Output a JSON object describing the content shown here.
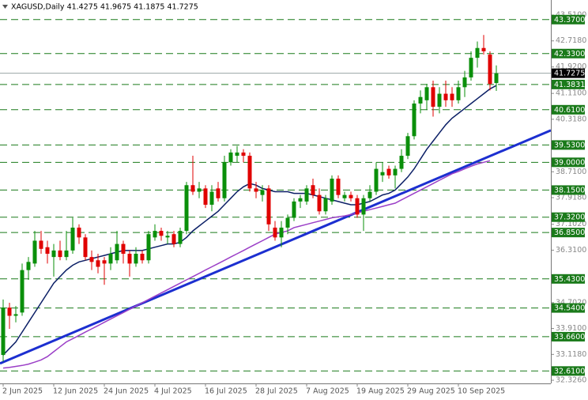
{
  "chart_data": {
    "type": "candlestick",
    "title": "XAGUSD,Daily  41.4275 41.9675 41.1875 41.7275",
    "categories": [
      "2 Jun 2025",
      null,
      null,
      null,
      null,
      null,
      null,
      null,
      "12 Jun 2025",
      null,
      null,
      null,
      null,
      null,
      null,
      null,
      "24 Jun 2025",
      null,
      null,
      null,
      null,
      null,
      null,
      null,
      "4 Jul 2025",
      null,
      null,
      null,
      null,
      null,
      null,
      null,
      "16 Jul 2025",
      null,
      null,
      null,
      null,
      null,
      null,
      null,
      "28 Jul 2025",
      null,
      null,
      null,
      null,
      null,
      null,
      null,
      "7 Aug 2025",
      null,
      null,
      null,
      null,
      null,
      null,
      null,
      "19 Aug 2025",
      null,
      null,
      null,
      null,
      null,
      null,
      null,
      "29 Aug 2025",
      null,
      null,
      null,
      null,
      null,
      null,
      null,
      "10 Sep 2025",
      null,
      null,
      null,
      null,
      null,
      null
    ],
    "open": [
      33.1,
      34.55,
      34.3,
      34.4,
      35.7,
      35.9,
      36.6,
      36.4,
      36.1,
      36.3,
      36.1,
      36.3,
      37.0,
      36.7,
      36.1,
      36.0,
      36.0,
      35.9,
      36.0,
      36.5,
      36.2,
      35.9,
      36.2,
      36.0,
      36.7,
      36.9,
      36.7,
      36.8,
      36.5,
      36.9,
      38.3,
      38.1,
      38.2,
      37.7,
      38.2,
      37.9,
      39.0,
      39.2,
      39.3,
      39.2,
      38.2,
      38.0,
      38.2,
      37.0,
      36.7,
      37.0,
      37.3,
      37.8,
      37.8,
      38.3,
      38.0,
      37.5,
      37.8,
      38.5,
      37.9,
      38.0,
      37.9,
      37.4,
      37.9,
      38.1,
      38.6,
      38.8,
      38.6,
      38.8,
      39.2,
      39.8,
      40.8,
      40.9,
      41.3,
      40.7,
      41.1,
      41.1,
      40.9,
      41.3,
      41.6,
      42.2,
      42.5,
      42.3,
      41.4275
    ],
    "high": [
      34.8,
      34.7,
      34.6,
      35.9,
      36.1,
      36.9,
      36.9,
      36.6,
      36.5,
      36.6,
      36.9,
      37.3,
      37.1,
      36.8,
      36.3,
      36.2,
      36.1,
      36.4,
      36.9,
      36.6,
      36.3,
      36.4,
      36.3,
      36.9,
      37.1,
      37.0,
      36.9,
      36.9,
      37.0,
      38.4,
      39.2,
      38.4,
      38.3,
      38.3,
      38.4,
      39.2,
      39.4,
      39.5,
      39.4,
      39.3,
      38.4,
      38.3,
      38.3,
      37.2,
      37.2,
      37.4,
      37.9,
      38.0,
      38.3,
      38.5,
      38.2,
      38.0,
      38.6,
      38.6,
      38.1,
      38.1,
      38.0,
      38.0,
      38.3,
      39.0,
      39.0,
      38.9,
      38.9,
      39.4,
      39.9,
      40.9,
      41.2,
      41.4,
      41.5,
      41.3,
      41.5,
      41.3,
      41.5,
      41.8,
      42.4,
      42.7,
      42.9,
      42.4,
      41.9675
    ],
    "low": [
      32.9,
      33.9,
      34.1,
      34.3,
      35.4,
      35.8,
      36.2,
      35.9,
      35.5,
      36.0,
      36.0,
      36.2,
      36.5,
      36.0,
      35.7,
      35.6,
      35.25,
      35.7,
      35.9,
      35.9,
      35.5,
      35.8,
      35.9,
      35.9,
      36.6,
      36.6,
      36.5,
      36.4,
      36.4,
      36.8,
      38.0,
      37.9,
      37.6,
      37.5,
      37.8,
      37.8,
      38.9,
      39.0,
      39.0,
      38.1,
      37.9,
      37.8,
      36.9,
      36.6,
      36.4,
      36.8,
      37.2,
      37.6,
      37.7,
      37.9,
      37.4,
      37.4,
      37.7,
      37.9,
      37.8,
      37.8,
      37.3,
      36.9,
      37.8,
      38.0,
      38.4,
      38.5,
      38.2,
      38.7,
      39.1,
      39.7,
      40.5,
      40.6,
      40.4,
      40.5,
      40.7,
      40.7,
      40.8,
      41.0,
      41.5,
      41.9,
      42.3,
      41.2,
      41.1875
    ],
    "close": [
      34.55,
      34.3,
      34.35,
      35.7,
      35.95,
      36.6,
      36.35,
      36.2,
      36.3,
      36.1,
      36.3,
      37.0,
      36.7,
      36.1,
      35.95,
      35.8,
      35.9,
      36.2,
      36.5,
      36.2,
      35.9,
      36.2,
      36.0,
      36.8,
      36.9,
      36.75,
      36.75,
      36.5,
      36.9,
      38.3,
      38.1,
      38.2,
      37.7,
      38.1,
      37.9,
      39.0,
      39.3,
      39.3,
      39.2,
      38.2,
      38.1,
      38.15,
      37.1,
      36.7,
      37.0,
      37.3,
      37.8,
      37.9,
      38.2,
      38.0,
      37.5,
      37.9,
      38.5,
      38.0,
      38.0,
      37.9,
      37.4,
      37.9,
      38.1,
      38.8,
      38.7,
      38.6,
      38.8,
      39.2,
      39.8,
      40.8,
      41.0,
      41.3,
      40.7,
      41.1,
      40.9,
      40.9,
      41.3,
      41.6,
      42.2,
      42.5,
      42.4,
      41.4,
      41.7275
    ],
    "up_color": "#0a8f0a",
    "down_color": "#e00000",
    "lines": [
      {
        "color": "#0b1f66",
        "values": [
          33.1,
          33.3,
          33.5,
          33.8,
          34.1,
          34.4,
          34.7,
          35.0,
          35.3,
          35.5,
          35.7,
          35.85,
          35.95,
          36.0,
          36.05,
          36.1,
          36.15,
          36.2,
          36.25,
          36.3,
          36.3,
          36.3,
          36.3,
          36.35,
          36.4,
          36.45,
          36.5,
          36.5,
          36.55,
          36.7,
          36.9,
          37.05,
          37.2,
          37.35,
          37.5,
          37.7,
          37.9,
          38.1,
          38.25,
          38.35,
          38.3,
          38.2,
          38.15,
          38.1,
          38.1,
          38.1,
          38.05,
          38.05,
          38.05,
          38.0,
          37.95,
          37.9,
          37.85,
          37.8,
          37.75,
          37.7,
          37.7,
          37.75,
          37.8,
          37.9,
          38.0,
          38.05,
          38.15,
          38.35,
          38.55,
          38.8,
          39.1,
          39.4,
          39.65,
          39.9,
          40.15,
          40.35,
          40.5,
          40.65,
          40.8,
          40.95,
          41.1,
          41.25,
          41.35
        ]
      },
      {
        "color": "#9b3fc7",
        "values": [
          32.7,
          32.72,
          32.75,
          32.78,
          32.82,
          32.88,
          32.95,
          33.05,
          33.2,
          33.35,
          33.5,
          33.6,
          33.7,
          33.8,
          33.9,
          34.0,
          34.1,
          34.2,
          34.3,
          34.4,
          34.5,
          34.6,
          34.7,
          34.8,
          34.9,
          35.0,
          35.1,
          35.2,
          35.3,
          35.4,
          35.5,
          35.6,
          35.7,
          35.8,
          35.9,
          36.0,
          36.1,
          36.2,
          36.3,
          36.4,
          36.5,
          36.6,
          36.7,
          36.8,
          36.85,
          36.9,
          37.0,
          37.05,
          37.1,
          37.15,
          37.2,
          37.25,
          37.3,
          37.33,
          37.36,
          37.4,
          37.45,
          37.5,
          37.55,
          37.6,
          37.65,
          37.7,
          37.75,
          37.85,
          37.95,
          38.05,
          38.15,
          38.25,
          38.35,
          38.45,
          38.55,
          38.65,
          38.72,
          38.8,
          38.88,
          38.95,
          39.0,
          39.05,
          null
        ]
      }
    ],
    "trendline": {
      "color": "#1c2fd0",
      "x": [
        -0.5,
        86.625
      ],
      "values": [
        32.84,
        39.98
      ]
    },
    "xlim": [
      -0.5,
      86.625
    ],
    "ylim": [
      32.23,
      43.97
    ],
    "yticks": [
      {
        "value": 43.51,
        "label": "43.5100"
      },
      {
        "value": 42.718,
        "label": "42.7180"
      },
      {
        "value": 41.92,
        "label": "41.9200"
      },
      {
        "value": 41.11,
        "label": "41.1100"
      },
      {
        "value": 40.318,
        "label": "40.3180"
      },
      {
        "value": 38.71,
        "label": "38.7100"
      },
      {
        "value": 37.918,
        "label": "37.9180"
      },
      {
        "value": 37.102,
        "label": "37.1020"
      },
      {
        "value": 36.31,
        "label": "36.3100"
      },
      {
        "value": 34.702,
        "label": "34.7020"
      },
      {
        "value": 33.91,
        "label": "33.9100"
      },
      {
        "value": 33.118,
        "label": "33.1180"
      },
      {
        "value": 32.326,
        "label": "32.3260"
      }
    ],
    "level_color": "#1a7a1a",
    "levels": [
      {
        "value": 43.37,
        "label": "43.3700"
      },
      {
        "value": 42.33,
        "label": "42.3300"
      },
      {
        "value": 41.3831,
        "label": "41.3831"
      },
      {
        "value": 40.61,
        "label": "40.6100"
      },
      {
        "value": 39.53,
        "label": "39.5300"
      },
      {
        "value": 39.0,
        "label": "39.0000"
      },
      {
        "value": 38.15,
        "label": "38.1500"
      },
      {
        "value": 37.32,
        "label": "37.3200"
      },
      {
        "value": 36.85,
        "label": "36.8500"
      },
      {
        "value": 35.43,
        "label": "35.4300"
      },
      {
        "value": 34.54,
        "label": "34.5400"
      },
      {
        "value": 33.66,
        "label": "33.6600"
      },
      {
        "value": 32.61,
        "label": "32.6100"
      }
    ],
    "last_price": {
      "value": 41.7275,
      "label": "41.7275"
    }
  }
}
